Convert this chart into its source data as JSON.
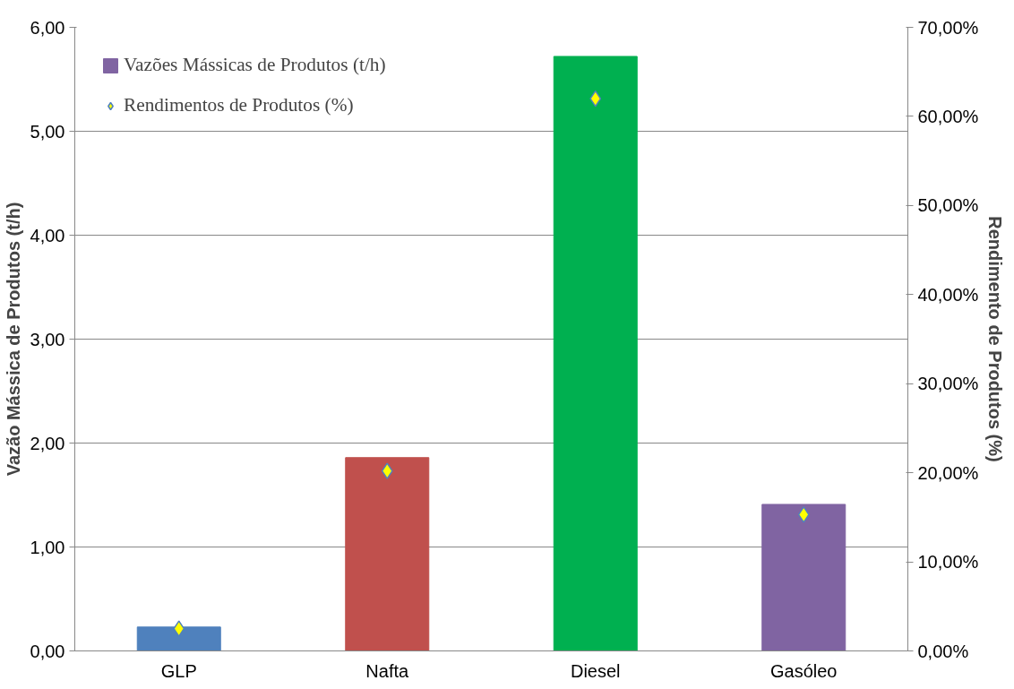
{
  "chart_data": {
    "type": "bar",
    "ylabel": "Vazão Mássica de Produtos (t/h)",
    "y2label": "Rendimento de Produtos (%)",
    "categories": [
      "GLP",
      "Nafta",
      "Diesel",
      "Gasóleo"
    ],
    "series": [
      {
        "name": "Vazões Mássicas de Produtos (t/h)",
        "color": "#8064a2",
        "colors": [
          "#4f81bd",
          "#c0504d",
          "#00b050",
          "#8064a2"
        ],
        "values": [
          0.23,
          1.86,
          5.72,
          1.41
        ]
      },
      {
        "name": "Rendimentos de Produtos (%)",
        "type": "scatter",
        "axis": "y2",
        "marker": "diamond",
        "color": "#ffff00",
        "values": [
          2.5,
          20.2,
          62.0,
          15.3
        ]
      }
    ],
    "ylim": [
      0,
      6
    ],
    "yticks": [
      {
        "value": 0,
        "label": "0,00"
      },
      {
        "value": 1,
        "label": "1,00"
      },
      {
        "value": 2,
        "label": "2,00"
      },
      {
        "value": 3,
        "label": "3,00"
      },
      {
        "value": 4,
        "label": "4,00"
      },
      {
        "value": 5,
        "label": "5,00"
      },
      {
        "value": 6,
        "label": "6,00"
      }
    ],
    "y2lim": [
      0,
      70
    ],
    "y2ticks": [
      {
        "value": 0,
        "label": "0,00%"
      },
      {
        "value": 10,
        "label": "10,00%"
      },
      {
        "value": 20,
        "label": "20,00%"
      },
      {
        "value": 30,
        "label": "30,00%"
      },
      {
        "value": 40,
        "label": "40,00%"
      },
      {
        "value": 50,
        "label": "50,00%"
      },
      {
        "value": 60,
        "label": "60,00%"
      },
      {
        "value": 70,
        "label": "70,00%"
      }
    ],
    "grid": "y",
    "legend": "top left"
  }
}
